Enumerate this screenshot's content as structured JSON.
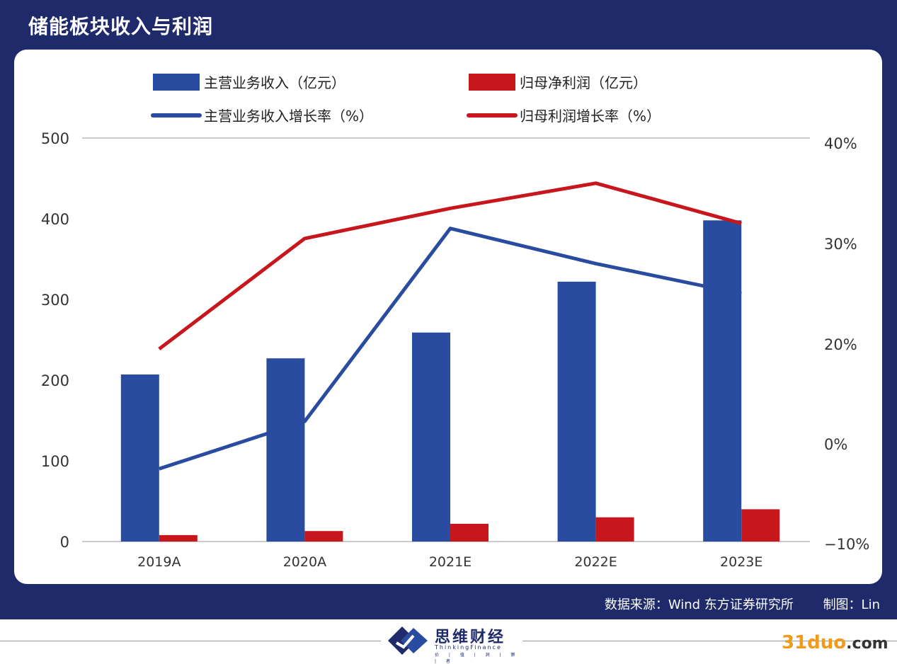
{
  "title": "储能板块收入与利润",
  "source": {
    "data_source": "数据来源：Wind  东方证券研究所",
    "credit": "制图：Lin"
  },
  "logo": {
    "name": "思维财经",
    "english": "ThinkingFinance",
    "tagline": "价 | 值 | 洞 | 察 | 者"
  },
  "watermark": {
    "brand": "31duo",
    "suffix": ".com"
  },
  "colors": {
    "frame": "#1f2a6b",
    "revenue": "#2a4ca0",
    "profit": "#c8161d"
  },
  "chart_data": {
    "type": "bar",
    "categories": [
      "2019A",
      "2020A",
      "2021E",
      "2022E",
      "2023E"
    ],
    "y_left": {
      "ticks": [
        "500",
        "400",
        "300",
        "200",
        "100",
        "0"
      ],
      "range": [
        0,
        500
      ]
    },
    "y_right": {
      "ticks": [
        "40%",
        "30%",
        "20%",
        "0%",
        "−10%"
      ],
      "range": [
        -10,
        40
      ],
      "tick_values": [
        40,
        30,
        20,
        0,
        -10
      ]
    },
    "series": [
      {
        "name": "主营业务收入（亿元）",
        "kind": "bar",
        "axis": "left",
        "color": "#2a4ca0",
        "values": [
          207,
          227,
          259,
          322,
          398
        ]
      },
      {
        "name": "归母净利润（亿元）",
        "kind": "bar",
        "axis": "left",
        "color": "#c8161d",
        "values": [
          8,
          13,
          22,
          30,
          40
        ]
      },
      {
        "name": "主营业务收入增长率（%）",
        "kind": "line",
        "axis": "right",
        "color": "#2a4ca0",
        "values": [
          -2.5,
          4.5,
          31.5,
          28,
          25
        ]
      },
      {
        "name": "归母利润增长率（%）",
        "kind": "line",
        "axis": "right",
        "color": "#c8161d",
        "values": [
          19,
          30.5,
          33.5,
          36,
          32
        ]
      }
    ],
    "grid": false,
    "legend_position": "top"
  }
}
